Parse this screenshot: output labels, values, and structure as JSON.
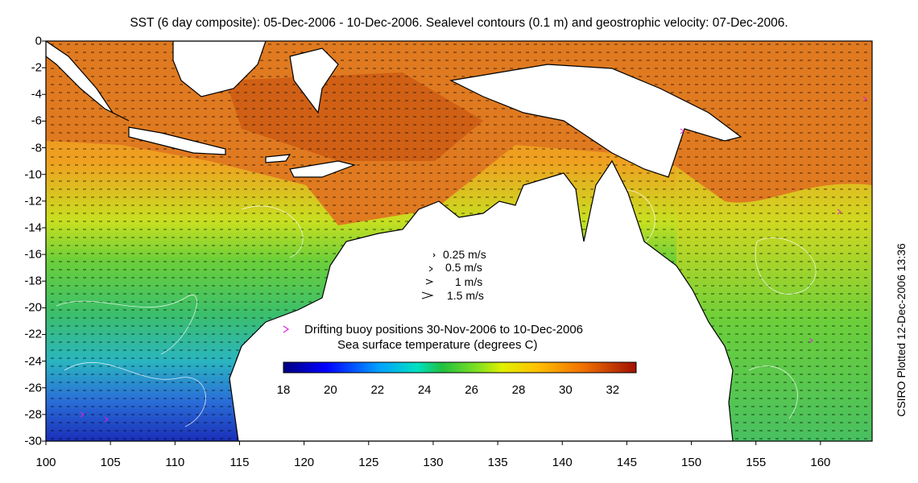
{
  "title": "SST (6 day composite): 05-Dec-2006 - 10-Dec-2006. Sealevel contours (0.1 m) and geostrophic velocity: 07-Dec-2006.",
  "credit": "CSIRO Plotted 12-Dec-2006 13:36",
  "axes": {
    "x_ticks": [
      "100",
      "105",
      "110",
      "115",
      "120",
      "125",
      "130",
      "135",
      "140",
      "145",
      "150",
      "155",
      "160"
    ],
    "y_ticks": [
      "0",
      "-2",
      "-4",
      "-6",
      "-8",
      "-10",
      "-12",
      "-14",
      "-16",
      "-18",
      "-20",
      "-22",
      "-24",
      "-26",
      "-28",
      "-30"
    ],
    "x_range": [
      100,
      164
    ],
    "y_range": [
      -30,
      0
    ]
  },
  "velocity_legend": [
    "0.25 m/s",
    "0.5 m/s",
    "1 m/s",
    "1.5 m/s"
  ],
  "buoy_legend": {
    "marker": ">",
    "label": "Drifting buoy positions 30-Nov-2006 to 10-Dec-2006",
    "color": "#e020e0"
  },
  "colorbar": {
    "label": "Sea surface temperature (degrees C)",
    "ticks": [
      "18",
      "20",
      "22",
      "24",
      "26",
      "28",
      "30",
      "32"
    ],
    "range": [
      18,
      33
    ]
  }
}
